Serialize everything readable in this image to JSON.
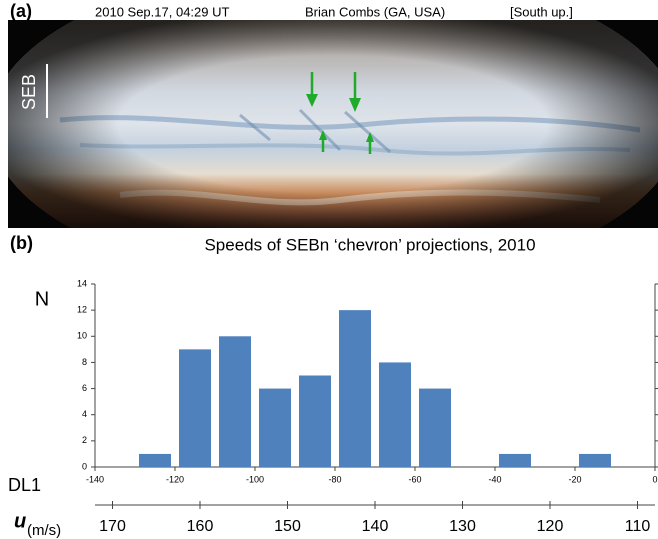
{
  "panel_a": {
    "label": "(a)",
    "caption": [
      "2010 Sep.17, 04:29 UT",
      "Brian Combs (GA, USA)",
      "[South up.]"
    ],
    "band_label": "SEB"
  },
  "chart_data": {
    "type": "histogram",
    "panel_label": "(b)",
    "title": "Speeds of SEBn ‘chevron’ projections, 2010",
    "ylabel": "N",
    "xlabel": "DL1",
    "bins": [
      -130,
      -120,
      -110,
      -100,
      -90,
      -80,
      -70,
      -60,
      -50,
      -40,
      -30,
      -20,
      -10
    ],
    "values": [
      1,
      9,
      10,
      6,
      7,
      12,
      8,
      6,
      0,
      1,
      0,
      1
    ],
    "color": "#4f81bd",
    "xlim": [
      -140,
      0
    ],
    "xticks": [
      -140,
      -120,
      -100,
      -80,
      -60,
      -40,
      -20,
      0
    ],
    "ylim": [
      0,
      14
    ],
    "yticks": [
      0,
      2,
      4,
      6,
      8,
      10,
      12,
      14
    ],
    "x2label": "u",
    "x2unit": "(m/s)",
    "x2lim": [
      172,
      108
    ],
    "x2ticks": [
      170,
      160,
      150,
      140,
      130,
      120,
      110
    ]
  }
}
